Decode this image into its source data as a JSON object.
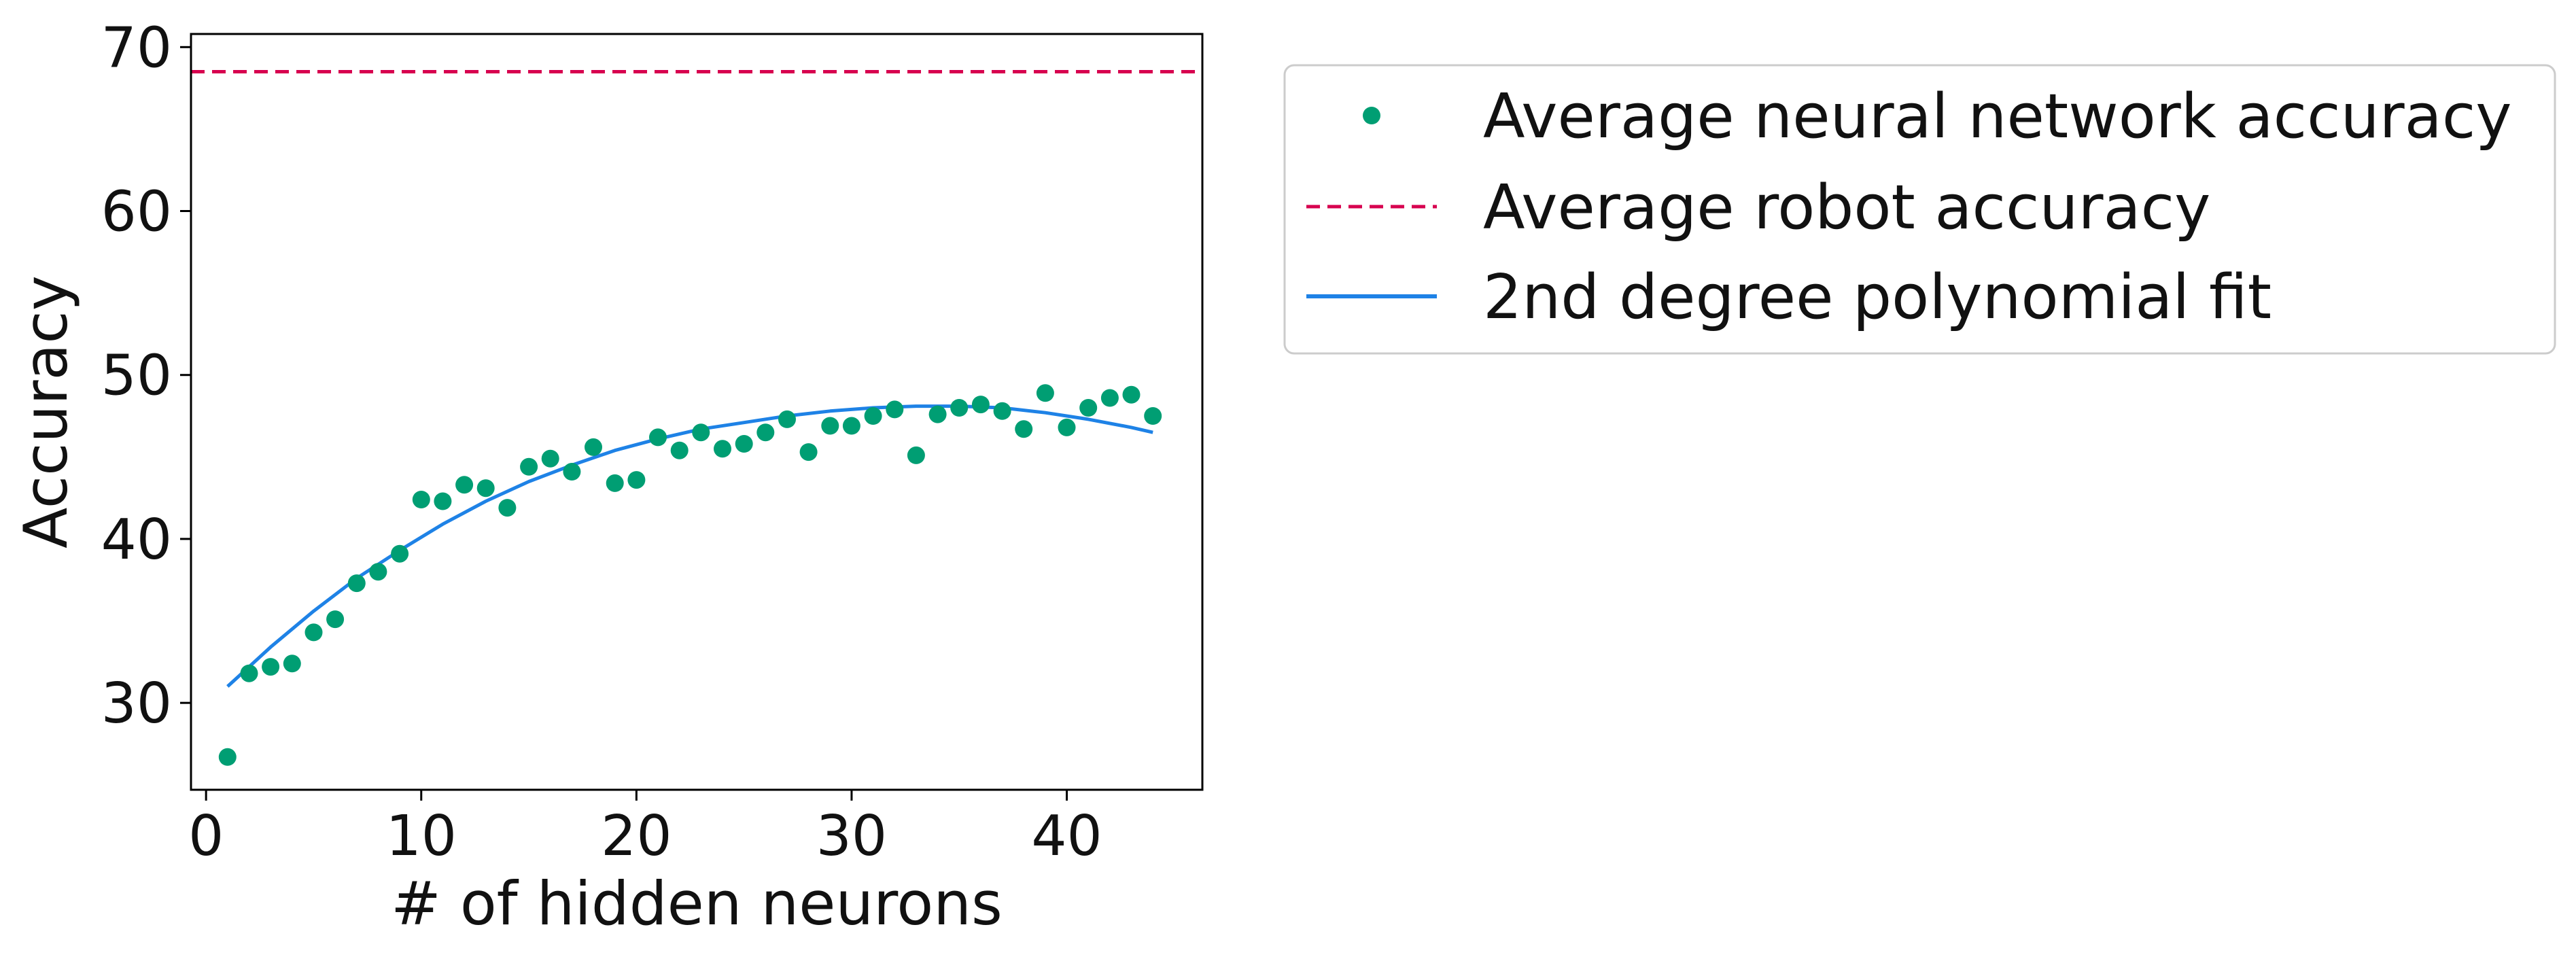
{
  "chart_data": {
    "type": "scatter",
    "xlabel": "# of hidden neurons",
    "ylabel": "Accuracy",
    "xlim": [
      -0.7,
      46.3
    ],
    "ylim": [
      24.7,
      70.8
    ],
    "x_ticks": [
      0,
      10,
      20,
      30,
      40
    ],
    "y_ticks": [
      30,
      40,
      50,
      60,
      70
    ],
    "grid": false,
    "legend_placement": "outside top-right",
    "series": [
      {
        "name": "Average neural network accuracy",
        "type": "scatter",
        "color": "#009e73",
        "x": [
          1,
          2,
          3,
          4,
          5,
          6,
          7,
          8,
          9,
          10,
          11,
          12,
          13,
          14,
          15,
          16,
          17,
          18,
          19,
          20,
          21,
          22,
          23,
          24,
          25,
          26,
          27,
          28,
          29,
          30,
          31,
          32,
          33,
          34,
          35,
          36,
          37,
          38,
          39,
          40,
          41,
          42,
          43,
          44
        ],
        "y": [
          26.7,
          31.8,
          32.2,
          32.4,
          34.3,
          35.1,
          37.3,
          38.0,
          39.1,
          42.4,
          42.3,
          43.3,
          43.1,
          41.9,
          44.4,
          44.9,
          44.1,
          45.6,
          43.4,
          43.6,
          46.2,
          45.4,
          46.5,
          45.5,
          45.8,
          46.5,
          47.3,
          45.3,
          46.9,
          46.9,
          47.5,
          47.9,
          45.1,
          47.6,
          48.0,
          48.2,
          47.8,
          46.7,
          48.9,
          46.8,
          48.0,
          48.6,
          48.8,
          47.5
        ]
      },
      {
        "name": "Average robot accuracy",
        "type": "hline",
        "color": "#d7004f",
        "dash": "dashed",
        "y": 68.5
      },
      {
        "name": "2nd degree polynomial fit",
        "type": "line",
        "color": "#1e82e6",
        "x": [
          1,
          3,
          5,
          7,
          9,
          11,
          13,
          15,
          17,
          19,
          21,
          23,
          25,
          27,
          29,
          31,
          33,
          35,
          37,
          39,
          41,
          43,
          44
        ],
        "y": [
          31.0,
          33.4,
          35.6,
          37.6,
          39.3,
          40.9,
          42.3,
          43.5,
          44.5,
          45.4,
          46.1,
          46.7,
          47.1,
          47.5,
          47.8,
          48.0,
          48.1,
          48.1,
          48.0,
          47.7,
          47.3,
          46.8,
          46.5
        ]
      }
    ]
  }
}
